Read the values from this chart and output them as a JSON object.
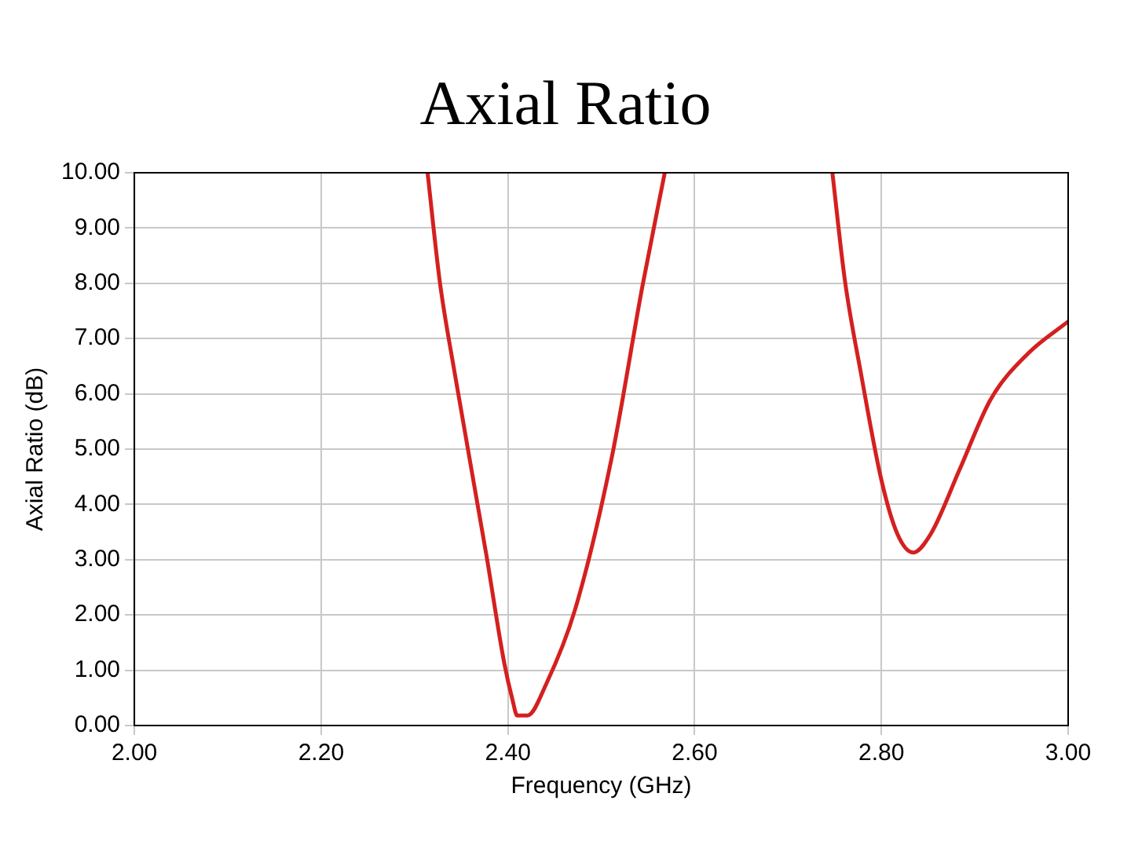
{
  "chart_data": {
    "type": "line",
    "title": "Axial Ratio",
    "xlabel": "Frequency (GHz)",
    "ylabel": "Axial Ratio (dB)",
    "x": [
      2.314,
      2.327,
      2.343,
      2.377,
      2.396,
      2.405,
      2.41,
      2.421,
      2.441,
      2.472,
      2.511,
      2.544,
      2.568,
      2.66,
      2.7475,
      2.761,
      2.778,
      2.8,
      2.817,
      2.834,
      2.853,
      2.884,
      2.917,
      2.957,
      3.0
    ],
    "series": [
      {
        "color": "#d42020",
        "values": [
          10,
          8.04,
          6.38,
          3.08,
          1.14,
          0.46,
          0.18,
          0.18,
          0.75,
          2.1,
          4.83,
          7.94,
          10,
          null,
          10,
          8.04,
          6.38,
          4.44,
          3.47,
          3.13,
          3.47,
          4.64,
          5.9,
          6.73,
          7.31
        ]
      }
    ],
    "xlim": [
      2.0,
      3.0
    ],
    "xticks": [
      {
        "value": 2.0,
        "label": "2.00"
      },
      {
        "value": 2.2,
        "label": "2.20"
      },
      {
        "value": 2.4,
        "label": "2.40"
      },
      {
        "value": 2.6,
        "label": "2.60"
      },
      {
        "value": 2.8,
        "label": "2.80"
      },
      {
        "value": 3.0,
        "label": "3.00"
      }
    ],
    "ylim": [
      0,
      10
    ],
    "yticks": [
      {
        "value": 0,
        "label": "0.00"
      },
      {
        "value": 1,
        "label": "1.00"
      },
      {
        "value": 2,
        "label": "2.00"
      },
      {
        "value": 3,
        "label": "3.00"
      },
      {
        "value": 4,
        "label": "4.00"
      },
      {
        "value": 5,
        "label": "5.00"
      },
      {
        "value": 6,
        "label": "6.00"
      },
      {
        "value": 7,
        "label": "7.00"
      },
      {
        "value": 8,
        "label": "8.00"
      },
      {
        "value": 9,
        "label": "9.00"
      },
      {
        "value": 10,
        "label": "10.00"
      }
    ],
    "grid": true,
    "legend": false,
    "marker": "none",
    "line_style": "solid"
  }
}
